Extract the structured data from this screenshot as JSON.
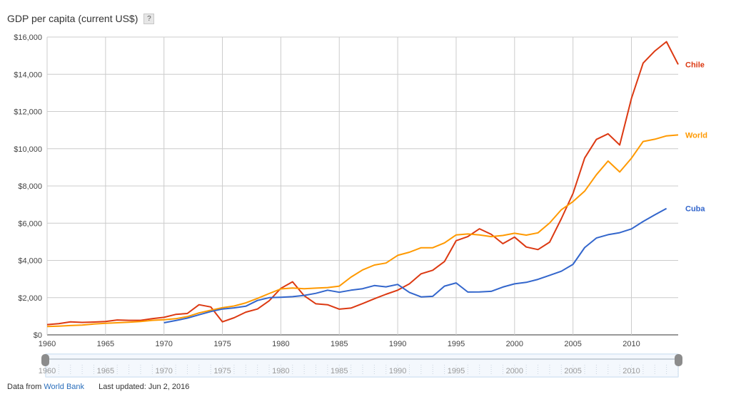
{
  "header": {
    "title": "GDP per capita (current US$)",
    "help_label": "?"
  },
  "footer": {
    "source_prefix": "Data from",
    "source_link": "World Bank",
    "updated": "Last updated: Jun 2, 2016"
  },
  "chart_data": {
    "type": "line",
    "title": "GDP per capita (current US$)",
    "xlim": [
      1960,
      2014
    ],
    "ylim": [
      0,
      16000
    ],
    "y_ticks": [
      "$0",
      "$2,000",
      "$4,000",
      "$6,000",
      "$8,000",
      "$10,000",
      "$12,000",
      "$14,000",
      "$16,000"
    ],
    "x_ticks": [
      "1960",
      "1965",
      "1970",
      "1975",
      "1980",
      "1985",
      "1990",
      "1995",
      "2000",
      "2005",
      "2010"
    ],
    "grid": true,
    "legend": "right, labels at line ends",
    "series": [
      {
        "name": "Chile",
        "color": "#dc3912",
        "x": [
          1960,
          1961,
          1962,
          1963,
          1964,
          1965,
          1966,
          1967,
          1968,
          1969,
          1970,
          1971,
          1972,
          1973,
          1974,
          1975,
          1976,
          1977,
          1978,
          1979,
          1980,
          1981,
          1982,
          1983,
          1984,
          1985,
          1986,
          1987,
          1988,
          1989,
          1990,
          1991,
          1992,
          1993,
          1994,
          1995,
          1996,
          1997,
          1998,
          1999,
          2000,
          2001,
          2002,
          2003,
          2004,
          2005,
          2006,
          2007,
          2008,
          2009,
          2010,
          2011,
          2012,
          2013,
          2014
        ],
        "y": [
          550,
          600,
          700,
          670,
          690,
          720,
          800,
          780,
          780,
          870,
          940,
          1100,
          1150,
          1620,
          1500,
          700,
          920,
          1220,
          1390,
          1830,
          2500,
          2850,
          2100,
          1670,
          1620,
          1380,
          1440,
          1680,
          1940,
          2180,
          2400,
          2740,
          3280,
          3470,
          3940,
          5060,
          5280,
          5700,
          5400,
          4900,
          5250,
          4720,
          4580,
          4980,
          6240,
          7600,
          9500,
          10500,
          10800,
          10200,
          12700,
          14600,
          15250,
          15750,
          14530
        ]
      },
      {
        "name": "World",
        "color": "#ff9900",
        "x": [
          1960,
          1961,
          1962,
          1963,
          1964,
          1965,
          1966,
          1967,
          1968,
          1969,
          1970,
          1971,
          1972,
          1973,
          1974,
          1975,
          1976,
          1977,
          1978,
          1979,
          1980,
          1981,
          1982,
          1983,
          1984,
          1985,
          1986,
          1987,
          1988,
          1989,
          1990,
          1991,
          1992,
          1993,
          1994,
          1995,
          1996,
          1997,
          1998,
          1999,
          2000,
          2001,
          2002,
          2003,
          2004,
          2005,
          2006,
          2007,
          2008,
          2009,
          2010,
          2011,
          2012,
          2013,
          2014
        ],
        "y": [
          450,
          470,
          500,
          530,
          580,
          620,
          650,
          680,
          720,
          780,
          810,
          870,
          980,
          1180,
          1320,
          1460,
          1550,
          1720,
          1960,
          2220,
          2470,
          2520,
          2480,
          2510,
          2540,
          2620,
          3100,
          3490,
          3750,
          3860,
          4270,
          4440,
          4680,
          4680,
          4940,
          5370,
          5420,
          5370,
          5280,
          5340,
          5460,
          5360,
          5480,
          6010,
          6720,
          7160,
          7720,
          8600,
          9340,
          8750,
          9490,
          10390,
          10510,
          10690,
          10740
        ]
      },
      {
        "name": "Cuba",
        "color": "#3366cc",
        "x": [
          1970,
          1971,
          1972,
          1973,
          1974,
          1975,
          1976,
          1977,
          1978,
          1979,
          1980,
          1981,
          1982,
          1983,
          1984,
          1985,
          1986,
          1987,
          1988,
          1989,
          1990,
          1991,
          1992,
          1993,
          1994,
          1995,
          1996,
          1997,
          1998,
          1999,
          2000,
          2001,
          2002,
          2003,
          2004,
          2005,
          2006,
          2007,
          2008,
          2009,
          2010,
          2011,
          2012,
          2013
        ],
        "y": [
          650,
          770,
          900,
          1080,
          1250,
          1390,
          1450,
          1540,
          1850,
          2000,
          2020,
          2050,
          2120,
          2230,
          2400,
          2290,
          2400,
          2480,
          2650,
          2580,
          2710,
          2280,
          2040,
          2070,
          2620,
          2790,
          2300,
          2310,
          2340,
          2570,
          2740,
          2820,
          2980,
          3200,
          3420,
          3790,
          4690,
          5200,
          5380,
          5490,
          5690,
          6090,
          6450,
          6790
        ]
      }
    ]
  }
}
